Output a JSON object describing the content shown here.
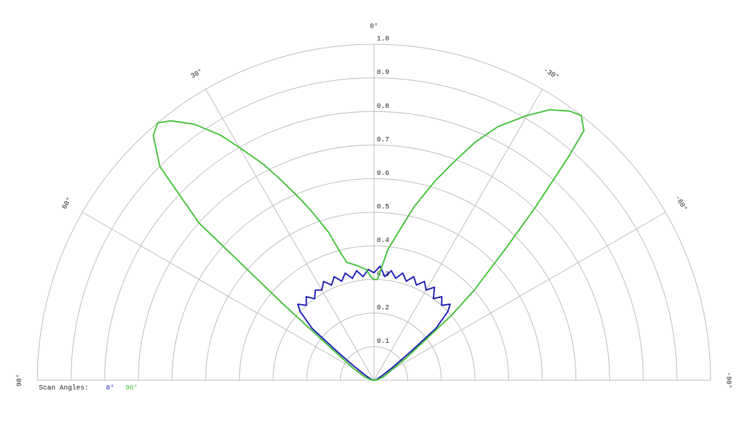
{
  "chart_data": {
    "type": "polar",
    "rlim": [
      0,
      1
    ],
    "rticks": [
      0.1,
      0.2,
      0.3,
      0.4,
      0.5,
      0.6,
      0.7,
      0.8,
      0.9,
      {
        "value": 1,
        "label": "1.0"
      }
    ],
    "thetalim": [
      -90,
      90
    ],
    "thetaticks": [
      {
        "value": 90,
        "label": "90°"
      },
      {
        "value": 60,
        "label": "60°"
      },
      {
        "value": 30,
        "label": "30°"
      },
      {
        "value": 0,
        "label": "0°"
      },
      {
        "value": -30,
        "label": "-30°"
      },
      {
        "value": -60,
        "label": "-60°"
      },
      {
        "value": -90,
        "label": "-90°"
      }
    ],
    "grid": true,
    "legend_title": "Scan Angles:",
    "series": [
      {
        "name": "0°",
        "color": "#1c1cb4",
        "theta": [
          90,
          80,
          70,
          60,
          55,
          52,
          50,
          47,
          45,
          42,
          39,
          36,
          33,
          30,
          27,
          24,
          21,
          18,
          15,
          12,
          9,
          6,
          3,
          0,
          -3,
          -6,
          -9,
          -12,
          -15,
          -18,
          -21,
          -24,
          -27,
          -30,
          -33,
          -36,
          -39,
          -42,
          -45,
          -47,
          -50,
          -52,
          -55,
          -60,
          -70,
          -80,
          -90
        ],
        "values": [
          0,
          0.005,
          0.01,
          0.03,
          0.07,
          0.14,
          0.24,
          0.3,
          0.32,
          0.3,
          0.32,
          0.3,
          0.32,
          0.31,
          0.33,
          0.31,
          0.33,
          0.31,
          0.33,
          0.31,
          0.33,
          0.31,
          0.33,
          0.32,
          0.34,
          0.31,
          0.33,
          0.31,
          0.33,
          0.31,
          0.33,
          0.31,
          0.33,
          0.31,
          0.33,
          0.3,
          0.32,
          0.3,
          0.32,
          0.3,
          0.24,
          0.14,
          0.07,
          0.03,
          0.01,
          0.005,
          0
        ]
      },
      {
        "name": "90°",
        "color": "#44c23a",
        "theta": [
          90,
          80,
          70,
          60,
          55,
          52,
          50,
          48,
          45,
          42,
          40,
          38,
          35,
          32,
          30,
          27,
          25,
          22,
          20,
          17,
          15,
          13,
          10,
          7,
          4,
          2,
          0,
          -2,
          -4,
          -6,
          -10,
          -13,
          -17,
          -20,
          -23,
          -26,
          -30,
          -33,
          -36,
          -38,
          -40,
          -41,
          -43,
          -45,
          -48,
          -50,
          -55,
          -60,
          -70,
          -80,
          -90
        ],
        "values": [
          0,
          0.01,
          0.03,
          0.07,
          0.12,
          0.2,
          0.35,
          0.7,
          0.9,
          0.98,
          1.0,
          0.98,
          0.93,
          0.86,
          0.8,
          0.72,
          0.66,
          0.58,
          0.53,
          0.46,
          0.4,
          0.36,
          0.35,
          0.34,
          0.33,
          0.31,
          0.3,
          0.3,
          0.34,
          0.39,
          0.46,
          0.53,
          0.62,
          0.69,
          0.77,
          0.84,
          0.91,
          0.96,
          0.99,
          1.0,
          0.97,
          0.88,
          0.7,
          0.55,
          0.4,
          0.3,
          0.12,
          0.06,
          0.03,
          0.01,
          0
        ]
      }
    ]
  }
}
